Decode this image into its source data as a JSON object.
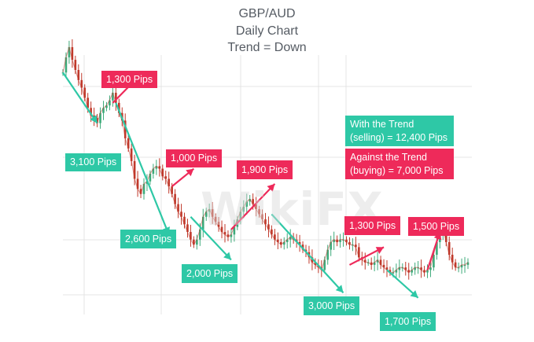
{
  "title": {
    "line1": "GBP/AUD",
    "line2": "Daily Chart",
    "line3": "Trend = Down"
  },
  "watermark": "WikiFX",
  "colors": {
    "price": "#c0392b",
    "price_up": "#3daa7a",
    "with_trend": "#2ec8a6",
    "against_trend": "#ee2a5a",
    "grid": "#e4e4e4"
  },
  "chart_data": {
    "type": "line",
    "title": "GBP/AUD Daily Chart",
    "grid": true,
    "x": [
      0,
      1,
      2,
      3,
      4,
      5,
      6,
      7,
      8,
      9,
      10,
      11,
      12,
      13,
      14,
      15,
      16,
      17,
      18,
      19,
      20,
      21,
      22,
      23,
      24,
      25,
      26,
      27,
      28,
      29,
      30,
      31,
      32,
      33,
      34,
      35,
      36,
      37,
      38,
      39,
      40,
      41,
      42,
      43,
      44,
      45,
      46,
      47,
      48,
      49,
      50,
      51,
      52,
      53,
      54,
      55,
      56,
      57,
      58,
      59,
      60,
      61,
      62,
      63,
      64,
      65,
      66,
      67,
      68,
      69,
      70,
      71,
      72,
      73,
      74,
      75,
      76,
      77,
      78,
      79,
      80,
      81,
      82,
      83,
      84,
      85,
      86,
      87,
      88,
      89,
      90,
      91,
      92,
      93,
      94,
      95,
      96,
      97,
      98,
      99,
      100,
      101,
      102,
      103,
      104,
      105,
      106,
      107,
      108,
      109,
      110,
      111,
      112,
      113,
      114,
      115,
      116,
      117,
      118,
      119,
      120,
      121,
      122,
      123,
      124,
      125,
      126,
      127,
      128,
      129,
      130
    ],
    "series": [
      {
        "values": [
          90,
          96,
          100,
          95,
          91,
          87,
          84,
          80,
          76,
          73,
          72,
          70,
          74,
          76,
          77,
          79,
          82,
          78,
          74,
          71,
          64,
          60,
          55,
          48,
          44,
          42,
          46,
          47,
          50,
          52,
          53,
          52,
          49,
          48,
          45,
          42,
          38,
          35,
          33,
          30,
          27,
          24,
          22,
          24,
          28,
          33,
          35,
          36,
          33,
          31,
          29,
          27,
          26,
          25,
          26,
          29,
          32,
          35,
          37,
          39,
          40,
          38,
          36,
          34,
          32,
          30,
          28,
          26,
          24,
          23,
          22,
          23,
          24,
          25,
          24,
          23,
          22,
          20,
          19,
          17,
          15,
          14,
          13,
          12,
          16,
          20,
          23,
          24,
          23,
          24,
          24,
          23,
          22,
          22,
          21,
          17,
          16,
          15,
          15,
          14,
          15,
          16,
          14,
          13,
          12,
          11,
          11,
          12,
          13,
          13,
          12,
          11,
          12,
          13,
          13,
          12,
          11,
          12,
          13,
          18,
          23,
          27,
          28,
          23,
          18,
          15,
          13,
          13,
          14,
          14,
          15
        ]
      }
    ],
    "moves": [
      {
        "label": "3,100 Pips",
        "direction": "with"
      },
      {
        "label": "1,300 Pips",
        "direction": "against"
      },
      {
        "label": "2,600 Pips",
        "direction": "with"
      },
      {
        "label": "1,000 Pips",
        "direction": "against"
      },
      {
        "label": "2,000 Pips",
        "direction": "with"
      },
      {
        "label": "1,900 Pips",
        "direction": "against"
      },
      {
        "label": "3,000 Pips",
        "direction": "with"
      },
      {
        "label": "1,300 Pips",
        "direction": "against"
      },
      {
        "label": "1,700 Pips",
        "direction": "with"
      },
      {
        "label": "1,500 Pips",
        "direction": "against"
      }
    ],
    "summary": {
      "with_trend_line1": "With the Trend",
      "with_trend_line2": "(selling) = 12,400 Pips",
      "against_trend_line1": "Against the Trend",
      "against_trend_line2": "(buying) = 7,000 Pips"
    }
  }
}
